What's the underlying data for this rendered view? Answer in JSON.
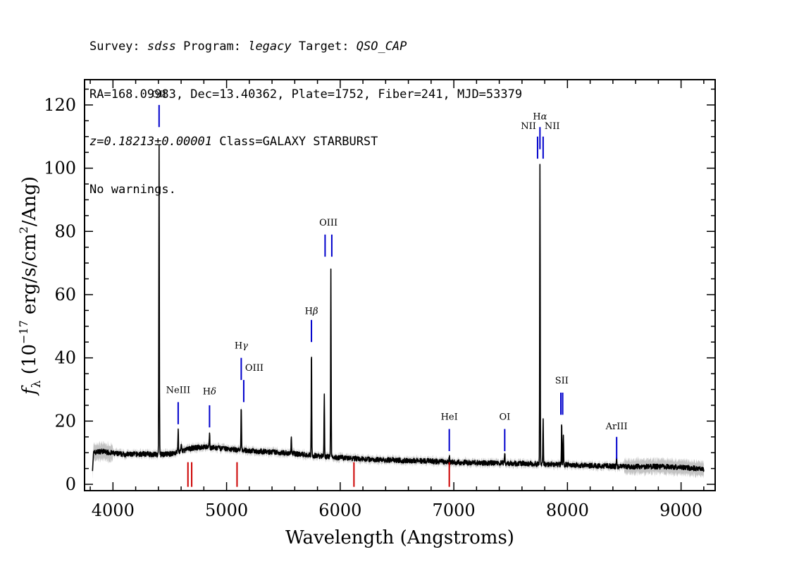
{
  "header": {
    "line1": {
      "survey_label": "Survey: ",
      "survey": "sdss",
      "program_label": " Program: ",
      "program": "legacy",
      "target_label": " Target: ",
      "target": "QSO_CAP"
    },
    "line2": "RA=168.09983, Dec=13.40362, Plate=1752, Fiber=241, MJD=53379",
    "line3": {
      "z": "z=0.18213±0.00001",
      "class": " Class=GALAXY STARBURST"
    },
    "line4": "No warnings."
  },
  "chart_data": {
    "type": "line",
    "xlabel": "Wavelength (Angstroms)",
    "ylabel": "f_λ (10^-17 erg/s/cm^2/Ang)",
    "xlim": [
      3750,
      9300
    ],
    "ylim": [
      -2,
      128
    ],
    "xticks": [
      4000,
      5000,
      6000,
      7000,
      8000,
      9000
    ],
    "yticks": [
      0,
      20,
      40,
      60,
      80,
      100,
      120
    ],
    "colors": {
      "spectrum": "#000000",
      "error": "#bdbdbd",
      "emission_marker": "#0000cc",
      "absorption_marker": "#cc0000"
    },
    "continuum": [
      [
        3820,
        5
      ],
      [
        3830,
        10
      ],
      [
        3900,
        10.5
      ],
      [
        4000,
        9.8
      ],
      [
        4100,
        9.5
      ],
      [
        4200,
        9.5
      ],
      [
        4300,
        9.6
      ],
      [
        4400,
        9.4
      ],
      [
        4500,
        9.6
      ],
      [
        4600,
        10.5
      ],
      [
        4700,
        11.5
      ],
      [
        4800,
        11.8
      ],
      [
        4900,
        11.5
      ],
      [
        5000,
        11.2
      ],
      [
        5100,
        10.9
      ],
      [
        5200,
        10.6
      ],
      [
        5300,
        10.4
      ],
      [
        5400,
        10.2
      ],
      [
        5500,
        10
      ],
      [
        5600,
        9.7
      ],
      [
        5700,
        9.3
      ],
      [
        5800,
        9
      ],
      [
        6000,
        8.4
      ],
      [
        6200,
        8
      ],
      [
        6500,
        7.6
      ],
      [
        6800,
        7.3
      ],
      [
        7000,
        7
      ],
      [
        7200,
        6.8
      ],
      [
        7400,
        6.7
      ],
      [
        7600,
        6.6
      ],
      [
        7800,
        6.4
      ],
      [
        8000,
        6.2
      ],
      [
        8200,
        5.9
      ],
      [
        8400,
        5.7
      ],
      [
        8600,
        5.6
      ],
      [
        8800,
        5.6
      ],
      [
        9000,
        5.4
      ],
      [
        9200,
        4.8
      ]
    ],
    "emission_peaks": [
      [
        4406,
        107
      ],
      [
        4574,
        17.5
      ],
      [
        4601,
        13
      ],
      [
        4850,
        16.5
      ],
      [
        5129,
        24.5
      ],
      [
        5570,
        15.5
      ],
      [
        5747,
        43
      ],
      [
        5860,
        29
      ],
      [
        5918,
        68
      ],
      [
        6960,
        9
      ],
      [
        7448,
        10
      ],
      [
        7758,
        100.5
      ],
      [
        7786,
        20
      ],
      [
        7949,
        20
      ],
      [
        7964,
        15.5
      ],
      [
        8433,
        8
      ]
    ],
    "lines": [
      {
        "label": "OII",
        "wavelengths": [
          4406
        ],
        "label_y": 121.5,
        "top": 120,
        "bottom": 113,
        "color": "blue",
        "rich": false
      },
      {
        "label": "NeIII",
        "wavelengths": [
          4574
        ],
        "label_y": 28,
        "top": 26,
        "bottom": 19,
        "color": "blue",
        "rich": false
      },
      {
        "label": "Hδ",
        "wavelengths": [
          4850
        ],
        "label_y": 27.5,
        "top": 25,
        "bottom": 18,
        "color": "blue",
        "rich": true
      },
      {
        "label": "Hγ",
        "wavelengths": [
          5129
        ],
        "label_y": 42,
        "top": 40,
        "bottom": 33,
        "color": "blue",
        "rich": true
      },
      {
        "label": "OIII",
        "wavelengths": [
          5151
        ],
        "label_y": 35,
        "top": 33,
        "bottom": 26,
        "color": "blue",
        "rich": false,
        "anchor": "start"
      },
      {
        "label": "Hβ",
        "wavelengths": [
          5747
        ],
        "label_y": 53,
        "top": 52,
        "bottom": 45,
        "color": "blue",
        "rich": true
      },
      {
        "label": "OIII",
        "wavelengths": [
          5867,
          5926
        ],
        "label_y": 81,
        "top": 79,
        "bottom": 72,
        "color": "blue",
        "rich": false
      },
      {
        "label": "HeI",
        "wavelengths": [
          6960
        ],
        "label_y": 19.5,
        "top": 17.5,
        "bottom": 10.5,
        "color": "blue",
        "rich": false
      },
      {
        "label": "OI",
        "wavelengths": [
          7448
        ],
        "label_y": 19.5,
        "top": 17.5,
        "bottom": 10.5,
        "color": "blue",
        "rich": false
      },
      {
        "label": "Hα",
        "wavelengths": [
          7758
        ],
        "label_y": 114.5,
        "top": 113,
        "bottom": 106,
        "color": "blue",
        "rich": true
      },
      {
        "label": "NII",
        "wavelengths": [
          7737
        ],
        "label_y": 111.5,
        "top": 110,
        "bottom": 103,
        "color": "blue",
        "rich": false,
        "anchor": "end"
      },
      {
        "label": "NII",
        "wavelengths": [
          7786
        ],
        "label_y": 111.5,
        "top": 110,
        "bottom": 103,
        "color": "blue",
        "rich": false,
        "anchor": "start"
      },
      {
        "label": "SII",
        "wavelengths": [
          7942,
          7958
        ],
        "label_y": 31,
        "top": 29,
        "bottom": 22,
        "color": "blue",
        "rich": false
      },
      {
        "label": "ArIII",
        "wavelengths": [
          8433
        ],
        "label_y": 16.5,
        "top": 15,
        "bottom": 8,
        "color": "blue",
        "rich": false
      }
    ],
    "absorption_markers": [
      4660,
      4693,
      5092,
      6121,
      6960
    ]
  }
}
